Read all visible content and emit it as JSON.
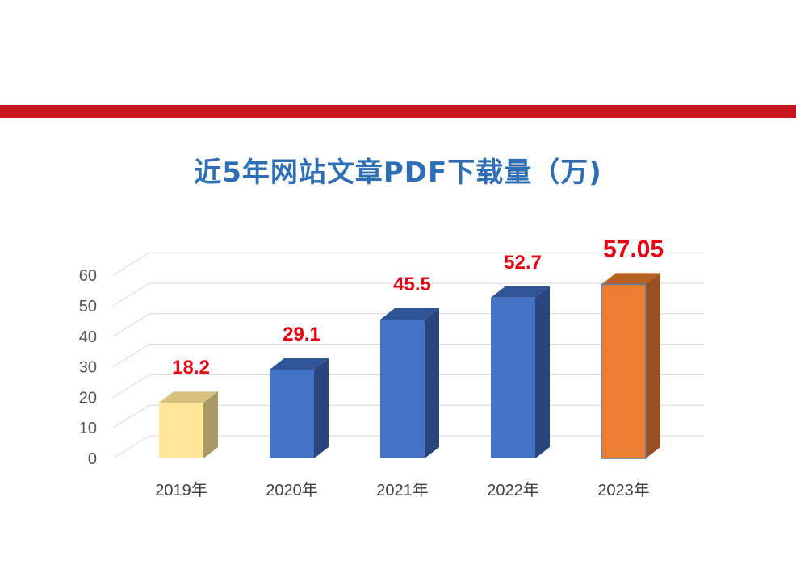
{
  "chart_data": {
    "type": "bar",
    "title": "近5年网站文章PDF下载量（万)",
    "categories": [
      "2019年",
      "2020年",
      "2021年",
      "2022年",
      "2023年"
    ],
    "values": [
      18.2,
      29.1,
      45.5,
      52.7,
      57.05
    ],
    "value_labels": [
      "18.2",
      "29.1",
      "45.5",
      "52.7",
      "57.05"
    ],
    "yticks": [
      "0",
      "10",
      "20",
      "30",
      "40",
      "50",
      "60"
    ],
    "ylim": [
      0,
      60
    ],
    "grid": true,
    "style": "3d-column",
    "bar_colors": {
      "front": [
        "#ffe699",
        "#4472c4",
        "#4472c4",
        "#4472c4",
        "#ed7d31"
      ],
      "top": [
        "#d6c27e",
        "#2f5597",
        "#2f5597",
        "#2f5597",
        "#b85f22"
      ],
      "side": [
        "#a89a62",
        "#28457e",
        "#28457e",
        "#28457e",
        "#985020"
      ]
    },
    "label_color": "#e60012",
    "title_color": "#2e6eb5",
    "accent_band_color": "#c8161d"
  }
}
